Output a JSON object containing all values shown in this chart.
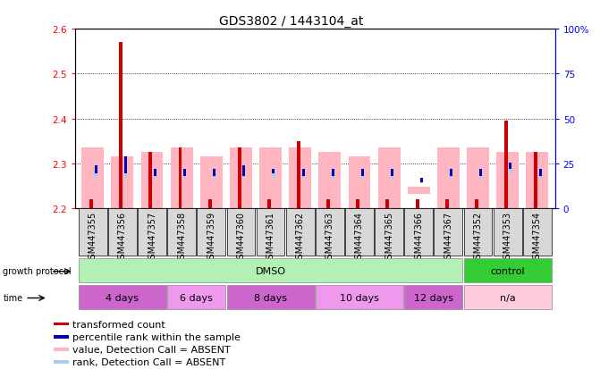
{
  "title": "GDS3802 / 1443104_at",
  "samples": [
    "GSM447355",
    "GSM447356",
    "GSM447357",
    "GSM447358",
    "GSM447359",
    "GSM447360",
    "GSM447361",
    "GSM447362",
    "GSM447363",
    "GSM447364",
    "GSM447365",
    "GSM447366",
    "GSM447367",
    "GSM447352",
    "GSM447353",
    "GSM447354"
  ],
  "ylim_left": [
    2.2,
    2.6
  ],
  "ylim_right": [
    0,
    100
  ],
  "yticks_left": [
    2.2,
    2.3,
    2.4,
    2.5,
    2.6
  ],
  "yticks_right": [
    0,
    25,
    50,
    75,
    100
  ],
  "red_bars": [
    2.22,
    2.57,
    2.325,
    2.335,
    2.22,
    2.335,
    2.22,
    2.35,
    2.22,
    2.22,
    2.22,
    2.22,
    2.22,
    2.22,
    2.395,
    2.325
  ],
  "pink_bars_bottom": [
    2.2,
    2.2,
    2.2,
    2.2,
    2.2,
    2.2,
    2.2,
    2.2,
    2.2,
    2.2,
    2.2,
    2.232,
    2.2,
    2.2,
    2.2,
    2.2
  ],
  "pink_bars_top": [
    2.335,
    2.315,
    2.325,
    2.335,
    2.315,
    2.335,
    2.335,
    2.335,
    2.325,
    2.315,
    2.335,
    2.248,
    2.335,
    2.335,
    2.325,
    2.325
  ],
  "blue_bars_bottom": [
    2.278,
    2.278,
    2.272,
    2.272,
    2.272,
    2.272,
    2.278,
    2.272,
    2.272,
    2.272,
    2.272,
    2.258,
    2.272,
    2.272,
    2.288,
    2.272
  ],
  "blue_bars_top": [
    2.295,
    2.315,
    2.287,
    2.287,
    2.287,
    2.295,
    2.287,
    2.287,
    2.287,
    2.287,
    2.287,
    2.268,
    2.287,
    2.287,
    2.302,
    2.287
  ],
  "lightblue_bars_bottom": [
    2.268,
    2.268,
    2.265,
    2.265,
    2.265,
    2.265,
    2.268,
    2.265,
    2.265,
    2.265,
    2.265,
    2.255,
    2.265,
    2.265,
    2.278,
    2.265
  ],
  "lightblue_bars_top": [
    2.282,
    2.282,
    2.278,
    2.278,
    2.278,
    2.278,
    2.282,
    2.278,
    2.278,
    2.278,
    2.278,
    2.268,
    2.278,
    2.278,
    2.295,
    2.278
  ],
  "groups": [
    {
      "label": "DMSO",
      "start": 0,
      "end": 13,
      "color": "#b3f0b3"
    },
    {
      "label": "control",
      "start": 13,
      "end": 16,
      "color": "#33cc33"
    }
  ],
  "time_groups": [
    {
      "label": "4 days",
      "start": 0,
      "end": 3,
      "color": "#cc66cc"
    },
    {
      "label": "6 days",
      "start": 3,
      "end": 5,
      "color": "#ee99ee"
    },
    {
      "label": "8 days",
      "start": 5,
      "end": 8,
      "color": "#cc66cc"
    },
    {
      "label": "10 days",
      "start": 8,
      "end": 11,
      "color": "#ee99ee"
    },
    {
      "label": "12 days",
      "start": 11,
      "end": 13,
      "color": "#cc66cc"
    },
    {
      "label": "n/a",
      "start": 13,
      "end": 16,
      "color": "#ffccdd"
    }
  ],
  "color_red": "#cc0000",
  "color_pink": "#ffb6c1",
  "color_blue": "#0000bb",
  "color_lightblue": "#aaccee",
  "title_fontsize": 10,
  "tick_fontsize": 7.5,
  "annot_fontsize": 8,
  "legend_fontsize": 8
}
